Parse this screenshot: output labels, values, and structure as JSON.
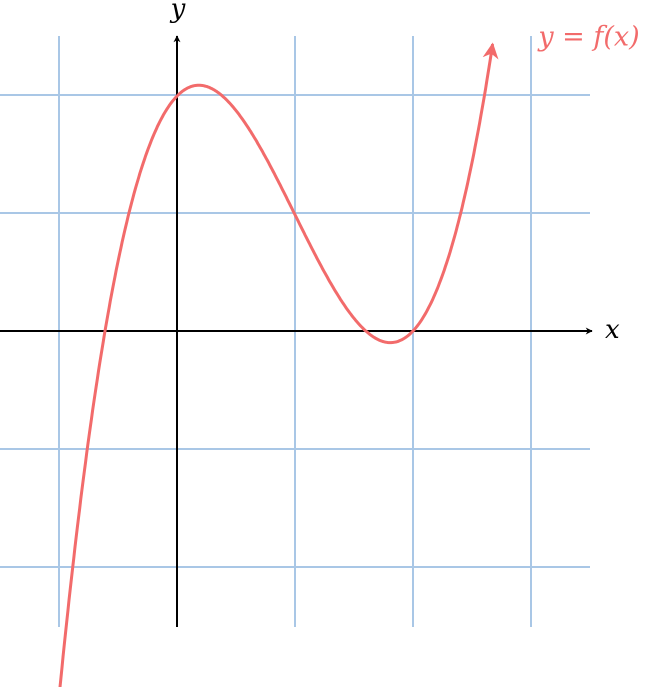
{
  "axes": {
    "x_label": "x",
    "y_label": "y"
  },
  "curve": {
    "label": "y = f(x)"
  }
}
